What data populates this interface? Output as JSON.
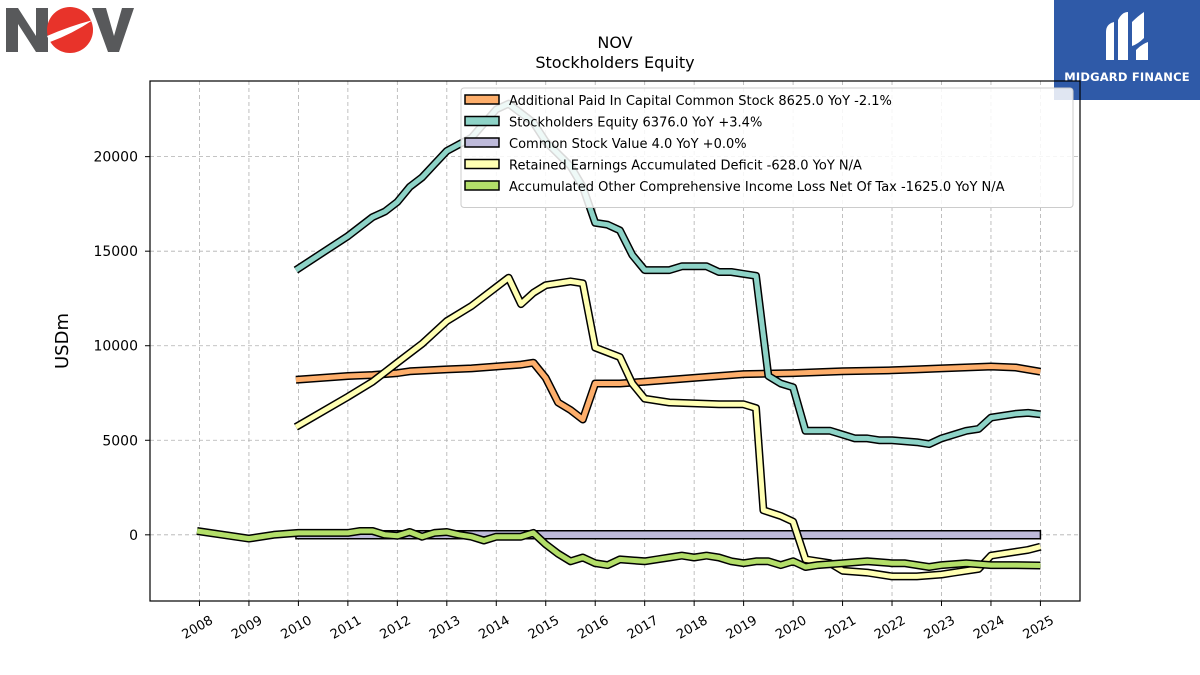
{
  "logos": {
    "left": {
      "name": "NOV",
      "colors": {
        "gray": "#58595b",
        "red": "#e8332a"
      }
    },
    "right": {
      "text": "MIDGARD FINANCE",
      "color": "#2f5aa8"
    }
  },
  "chart_data": {
    "type": "line",
    "title": "NOV",
    "subtitle": "Stockholders  Equity",
    "xlabel": "",
    "ylabel": "USDm",
    "xlim": [
      2007,
      2025.8
    ],
    "ylim": [
      -3500,
      24000
    ],
    "x_ticks": [
      "2008",
      "2009",
      "2010",
      "2011",
      "2012",
      "2013",
      "2014",
      "2015",
      "2016",
      "2017",
      "2018",
      "2019",
      "2020",
      "2021",
      "2022",
      "2023",
      "2024",
      "2025"
    ],
    "y_ticks": [
      0,
      5000,
      10000,
      15000,
      20000
    ],
    "grid": true,
    "legend_position": "top-right",
    "series": [
      {
        "name": "Additional Paid In Capital Common Stock",
        "legend_label": "Additional Paid In Capital Common Stock  8625.0 YoY -2.1%",
        "color": "#fdae6b",
        "points": [
          [
            2009.95,
            8200
          ],
          [
            2011,
            8400
          ],
          [
            2011.5,
            8450
          ],
          [
            2012,
            8550
          ],
          [
            2012.25,
            8650
          ],
          [
            2013,
            8750
          ],
          [
            2013.5,
            8800
          ],
          [
            2014,
            8900
          ],
          [
            2014.5,
            9000
          ],
          [
            2014.75,
            9100
          ],
          [
            2015,
            8300
          ],
          [
            2015.25,
            7000
          ],
          [
            2015.5,
            6600
          ],
          [
            2015.75,
            6100
          ],
          [
            2016,
            8000
          ],
          [
            2016.5,
            8000
          ],
          [
            2017,
            8100
          ],
          [
            2018,
            8300
          ],
          [
            2019,
            8500
          ],
          [
            2020,
            8550
          ],
          [
            2021,
            8650
          ],
          [
            2022,
            8700
          ],
          [
            2022.5,
            8750
          ],
          [
            2023,
            8800
          ],
          [
            2024,
            8900
          ],
          [
            2024.5,
            8850
          ],
          [
            2025,
            8625
          ]
        ]
      },
      {
        "name": "Stockholders Equity",
        "legend_label": "Stockholders Equity  6376.0 YoY +3.4%",
        "color": "#8dd3c7",
        "points": [
          [
            2009.95,
            14000
          ],
          [
            2011,
            15800
          ],
          [
            2011.5,
            16800
          ],
          [
            2011.75,
            17100
          ],
          [
            2012,
            17600
          ],
          [
            2012.25,
            18400
          ],
          [
            2012.5,
            18900
          ],
          [
            2012.75,
            19600
          ],
          [
            2013,
            20300
          ],
          [
            2013.5,
            21000
          ],
          [
            2014,
            22500
          ],
          [
            2014.25,
            22800
          ],
          [
            2014.5,
            22300
          ],
          [
            2014.75,
            21800
          ],
          [
            2015,
            20800
          ],
          [
            2015.5,
            19500
          ],
          [
            2015.75,
            18400
          ],
          [
            2016,
            16500
          ],
          [
            2016.25,
            16400
          ],
          [
            2016.5,
            16100
          ],
          [
            2016.75,
            14800
          ],
          [
            2017,
            14000
          ],
          [
            2017.5,
            14000
          ],
          [
            2017.75,
            14200
          ],
          [
            2018.25,
            14200
          ],
          [
            2018.5,
            13900
          ],
          [
            2018.75,
            13900
          ],
          [
            2019,
            13800
          ],
          [
            2019.25,
            13700
          ],
          [
            2019.5,
            8400
          ],
          [
            2019.75,
            8000
          ],
          [
            2020,
            7800
          ],
          [
            2020.25,
            5500
          ],
          [
            2020.75,
            5500
          ],
          [
            2021,
            5300
          ],
          [
            2021.25,
            5100
          ],
          [
            2021.5,
            5100
          ],
          [
            2021.75,
            5000
          ],
          [
            2022,
            5000
          ],
          [
            2022.5,
            4900
          ],
          [
            2022.75,
            4800
          ],
          [
            2023,
            5100
          ],
          [
            2023.25,
            5300
          ],
          [
            2023.5,
            5500
          ],
          [
            2023.75,
            5600
          ],
          [
            2024,
            6200
          ],
          [
            2024.25,
            6300
          ],
          [
            2024.5,
            6400
          ],
          [
            2024.75,
            6450
          ],
          [
            2025,
            6376
          ]
        ]
      },
      {
        "name": "Common Stock Value",
        "legend_label": "Common Stock Value  4.0 YoY +0.0%",
        "color": "#bebada",
        "points": [
          [
            2009.95,
            4
          ],
          [
            2025,
            4
          ]
        ]
      },
      {
        "name": "Retained Earnings Accumulated Deficit",
        "legend_label": "Retained Earnings Accumulated Deficit  -628.0 YoY N/A",
        "color": "#ffffb3",
        "points": [
          [
            2009.95,
            5700
          ],
          [
            2011,
            7300
          ],
          [
            2011.5,
            8100
          ],
          [
            2012,
            9100
          ],
          [
            2012.5,
            10100
          ],
          [
            2013,
            11300
          ],
          [
            2013.5,
            12100
          ],
          [
            2014,
            13100
          ],
          [
            2014.25,
            13600
          ],
          [
            2014.5,
            12200
          ],
          [
            2014.75,
            12800
          ],
          [
            2015,
            13200
          ],
          [
            2015.5,
            13400
          ],
          [
            2015.75,
            13300
          ],
          [
            2016,
            9900
          ],
          [
            2016.5,
            9400
          ],
          [
            2016.75,
            8000
          ],
          [
            2017,
            7200
          ],
          [
            2017.5,
            7000
          ],
          [
            2018,
            6950
          ],
          [
            2018.5,
            6900
          ],
          [
            2019,
            6900
          ],
          [
            2019.25,
            6700
          ],
          [
            2019.4,
            1300
          ],
          [
            2019.75,
            1000
          ],
          [
            2020,
            700
          ],
          [
            2020.25,
            -1300
          ],
          [
            2020.75,
            -1500
          ],
          [
            2021,
            -1900
          ],
          [
            2021.5,
            -2000
          ],
          [
            2022,
            -2200
          ],
          [
            2022.5,
            -2200
          ],
          [
            2023,
            -2100
          ],
          [
            2023.25,
            -2000
          ],
          [
            2023.75,
            -1800
          ],
          [
            2024,
            -1100
          ],
          [
            2024.25,
            -1000
          ],
          [
            2024.5,
            -900
          ],
          [
            2024.75,
            -800
          ],
          [
            2025,
            -628
          ]
        ]
      },
      {
        "name": "Accumulated Other Comprehensive Income Loss Net Of Tax",
        "legend_label": "Accumulated Other Comprehensive Income Loss Net Of Tax  -1625.0 YoY N/A",
        "color": "#b3de69",
        "points": [
          [
            2007.95,
            200
          ],
          [
            2009,
            -200
          ],
          [
            2009.5,
            0
          ],
          [
            2010,
            100
          ],
          [
            2011,
            100
          ],
          [
            2011.25,
            200
          ],
          [
            2011.5,
            200
          ],
          [
            2011.75,
            0
          ],
          [
            2012,
            -50
          ],
          [
            2012.25,
            150
          ],
          [
            2012.5,
            -100
          ],
          [
            2012.75,
            100
          ],
          [
            2013,
            150
          ],
          [
            2013.25,
            0
          ],
          [
            2013.5,
            -100
          ],
          [
            2013.75,
            -300
          ],
          [
            2014,
            -100
          ],
          [
            2014.5,
            -100
          ],
          [
            2014.75,
            100
          ],
          [
            2015,
            -500
          ],
          [
            2015.25,
            -1000
          ],
          [
            2015.5,
            -1400
          ],
          [
            2015.75,
            -1200
          ],
          [
            2016,
            -1500
          ],
          [
            2016.25,
            -1600
          ],
          [
            2016.5,
            -1300
          ],
          [
            2017,
            -1400
          ],
          [
            2017.25,
            -1300
          ],
          [
            2017.5,
            -1200
          ],
          [
            2017.75,
            -1100
          ],
          [
            2018,
            -1200
          ],
          [
            2018.25,
            -1100
          ],
          [
            2018.5,
            -1200
          ],
          [
            2018.75,
            -1400
          ],
          [
            2019,
            -1500
          ],
          [
            2019.25,
            -1400
          ],
          [
            2019.5,
            -1400
          ],
          [
            2019.75,
            -1600
          ],
          [
            2020,
            -1400
          ],
          [
            2020.25,
            -1700
          ],
          [
            2020.5,
            -1600
          ],
          [
            2021,
            -1500
          ],
          [
            2021.5,
            -1400
          ],
          [
            2022,
            -1500
          ],
          [
            2022.25,
            -1500
          ],
          [
            2022.75,
            -1700
          ],
          [
            2023,
            -1600
          ],
          [
            2023.5,
            -1500
          ],
          [
            2024,
            -1600
          ],
          [
            2024.5,
            -1600
          ],
          [
            2025,
            -1625
          ]
        ]
      }
    ]
  }
}
